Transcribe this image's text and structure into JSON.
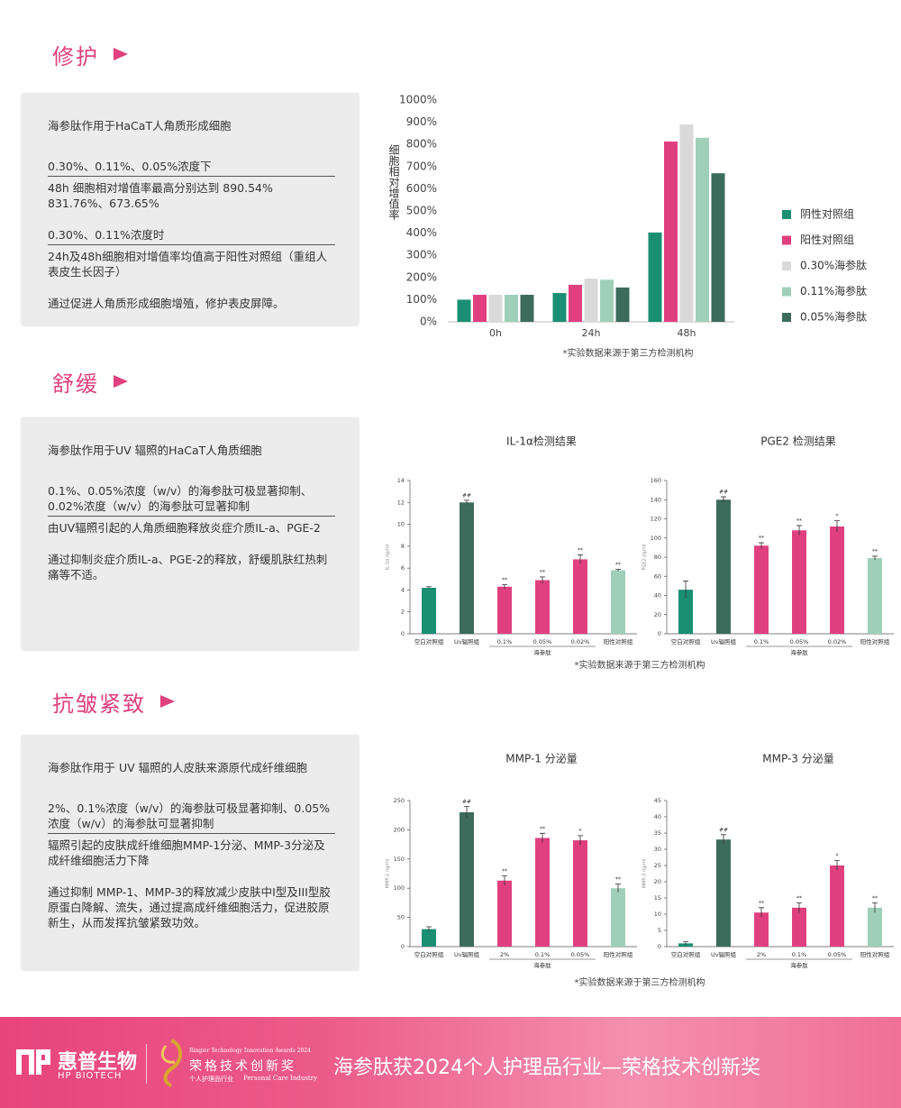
{
  "sections": [
    {
      "title": "修护",
      "paragraphs": [
        "海参肽作用于HaCaT人角质形成细胞",
        "0.30%、0.11%、0.05%浓度下",
        "48h 细胞相对增值率最高分别达到 890.54% 831.76%、673.65%",
        "0.30%、0.11%浓度时",
        "24h及48h细胞相对增值率均值高于阳性对照组（重组人表皮生长因子）",
        "通过促进人角质形成细胞增殖，修护表皮屏障。"
      ],
      "note": "*实验数据来源于第三方检测机构"
    },
    {
      "title": "舒缓",
      "paragraphs": [
        "海参肽作用于UV 辐照的HaCaT人角质细胞",
        "0.1%、0.05%浓度（w/v）的海参肽可极显著抑制、0.02%浓度（w/v）的海参肽可显著抑制",
        "由UV辐照引起的人角质细胞释放炎症介质IL-a、PGE-2",
        "通过抑制炎症介质IL-a、PGE-2的释放，舒缓肌肤红热刺痛等不适。"
      ],
      "note": "*实验数据来源于第三方检测机构"
    },
    {
      "title": "抗皱紧致",
      "paragraphs": [
        "海参肽作用于 UV 辐照的人皮肤来源原代成纤维细胞",
        "2%、0.1%浓度（w/v）的海参肽可极显著抑制、0.05%浓度（w/v）的海参肽可显著抑制",
        "辐照引起的皮肤成纤维细胞MMP-1分泌、MMP-3分泌及成纤维细胞活力下降",
        "通过抑制 MMP-1、MMP-3的释放减少皮肤中I型及III型胶原蛋白降解、流失，通过提高成纤维细胞活力，促进胶原新生，从而发挥抗皱紧致功效。"
      ],
      "note": "*实验数据来源于第三方检测机构"
    }
  ],
  "chart_data": [
    {
      "type": "bar",
      "y_label": "细胞相对增值率",
      "categories": [
        "0h",
        "24h",
        "48h"
      ],
      "series": [
        {
          "name": "阴性对照组",
          "color": "#1a8f74",
          "values": [
            100,
            130,
            403
          ]
        },
        {
          "name": "阳性对照组",
          "color": "#e0407f",
          "values": [
            122,
            167,
            813
          ]
        },
        {
          "name": "0.30%海参肽",
          "color": "#d9d9d9",
          "values": [
            122,
            195,
            890
          ]
        },
        {
          "name": "0.11%海参肽",
          "color": "#9fcfb8",
          "values": [
            122,
            190,
            830
          ]
        },
        {
          "name": "0.05%海参肽",
          "color": "#3d6b5c",
          "values": [
            122,
            155,
            670
          ]
        }
      ],
      "ylim": [
        0,
        1000
      ],
      "yticks": [
        {
          "value": 0,
          "label": "0%"
        },
        {
          "value": 100,
          "label": "100%"
        },
        {
          "value": 200,
          "label": "200%"
        },
        {
          "value": 300,
          "label": "300%"
        },
        {
          "value": 400,
          "label": "400%"
        },
        {
          "value": 500,
          "label": "500%"
        },
        {
          "value": 600,
          "label": "600%"
        },
        {
          "value": 700,
          "label": "700%"
        },
        {
          "value": 800,
          "label": "800%"
        },
        {
          "value": 900,
          "label": "900%"
        },
        {
          "value": 1000,
          "label": "1000%"
        }
      ],
      "legend": "right"
    },
    {
      "type": "bar",
      "title": "IL-1α检测结果",
      "y_label": "IL-1α ng/ml",
      "categories": [
        "空白对照组",
        "Uv辐照组",
        "0.1%",
        "0.05%",
        "0.02%",
        "阳性对照组"
      ],
      "group_label": "海参肽",
      "values": [
        4.2,
        12,
        4.3,
        4.9,
        6.8,
        5.8
      ],
      "errors": [
        0.1,
        0.2,
        0.2,
        0.3,
        0.4,
        0.1
      ],
      "significance": [
        null,
        "##",
        "**",
        "**",
        "**",
        "**"
      ],
      "colors": [
        "#1a8f74",
        "#3d6b5c",
        "#e0407f",
        "#e0407f",
        "#e0407f",
        "#9fcfb8"
      ],
      "ylim": [
        0,
        14
      ],
      "yticks": [
        0,
        2,
        4,
        6,
        8,
        10,
        12,
        14
      ]
    },
    {
      "type": "bar",
      "title": "PGE2 检测结果",
      "y_label": "PGE2 pg/ml",
      "categories": [
        "空白对照组",
        "Uv辐照组",
        "0.1%",
        "0.05%",
        "0.02%",
        "阳性对照组"
      ],
      "group_label": "海参肽",
      "values": [
        46,
        140,
        92,
        108,
        112,
        79
      ],
      "errors": [
        9,
        3,
        3,
        5,
        6,
        2
      ],
      "significance": [
        null,
        "##",
        "**",
        "**",
        "*",
        "**"
      ],
      "colors": [
        "#1a8f74",
        "#3d6b5c",
        "#e0407f",
        "#e0407f",
        "#e0407f",
        "#9fcfb8"
      ],
      "ylim": [
        0,
        160
      ],
      "yticks": [
        0,
        20,
        40,
        60,
        80,
        100,
        120,
        140,
        160
      ]
    },
    {
      "type": "bar",
      "title": "MMP-1 分泌量",
      "y_label": "MMP-1 ng/ml",
      "categories": [
        "空白对照组",
        "Uv辐照组",
        "2%",
        "0.1%",
        "0.05%",
        "阳性对照组"
      ],
      "group_label": "海参肽",
      "values": [
        30,
        230,
        113,
        186,
        182,
        100
      ],
      "errors": [
        4,
        10,
        8,
        8,
        8,
        7
      ],
      "significance": [
        null,
        "##",
        "**",
        "**",
        "*",
        "**"
      ],
      "colors": [
        "#1a8f74",
        "#3d6b5c",
        "#e0407f",
        "#e0407f",
        "#e0407f",
        "#9fcfb8"
      ],
      "ylim": [
        0,
        250
      ],
      "yticks": [
        0,
        50,
        100,
        150,
        200,
        250
      ]
    },
    {
      "type": "bar",
      "title": "MMP-3 分泌量",
      "y_label": "MMP-3 ng/ml",
      "categories": [
        "空白对照组",
        "Uv辐照组",
        "2%",
        "0.1%",
        "0.05%",
        "阳性对照组"
      ],
      "group_label": "海参肽",
      "values": [
        1,
        33,
        10.5,
        12,
        25,
        12
      ],
      "errors": [
        0.5,
        1.5,
        1.5,
        1.5,
        1.5,
        1.5
      ],
      "significance": [
        null,
        "##",
        "**",
        "**",
        "*",
        "**"
      ],
      "colors": [
        "#1a8f74",
        "#3d6b5c",
        "#e0407f",
        "#e0407f",
        "#e0407f",
        "#9fcfb8"
      ],
      "ylim": [
        0,
        45
      ],
      "yticks": [
        0,
        5,
        10,
        15,
        20,
        25,
        30,
        35,
        40,
        45
      ]
    }
  ],
  "footer": {
    "brand": "惠普生物",
    "brand_en": "HP BIOTECH",
    "award_en": "Ringier Technology Innovation Awards 2024",
    "award": "荣格技术创新奖",
    "award_industry": "个人护理品行业",
    "award_industry_en": "Personal Care Industry",
    "headline": "海参肽获2024个人护理品行业—荣格技术创新奖"
  }
}
